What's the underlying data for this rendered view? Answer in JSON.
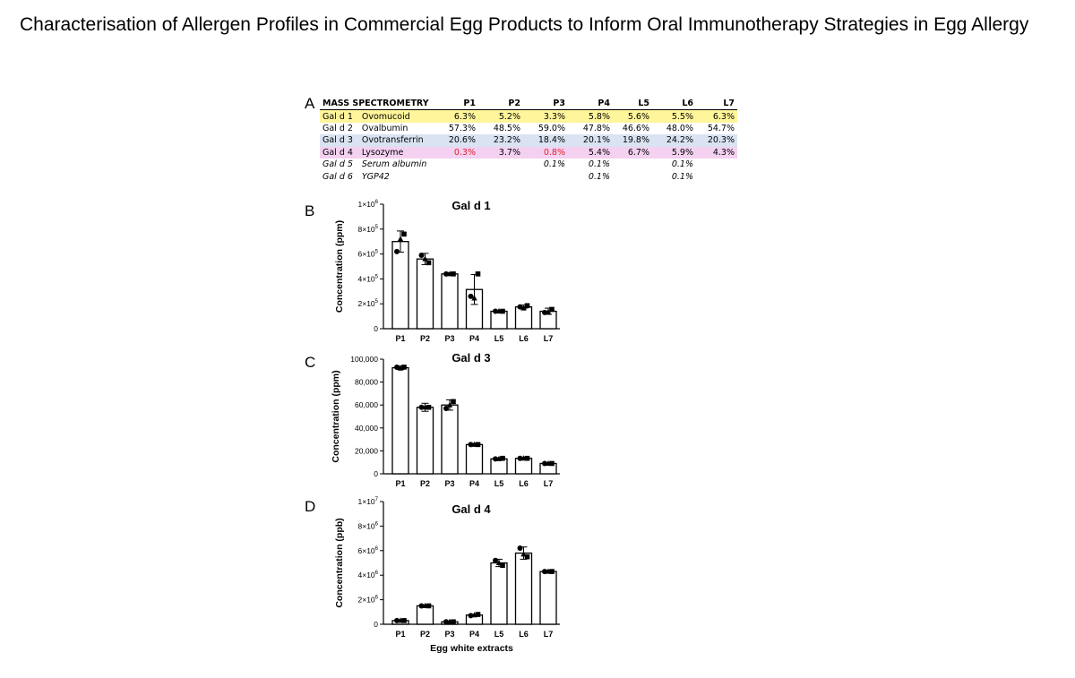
{
  "title": "Characterisation of Allergen Profiles in Commercial Egg Products to Inform Oral Immunotherapy Strategies in Egg Allergy",
  "panel_letters": {
    "a": "A",
    "b": "B",
    "c": "C",
    "d": "D"
  },
  "table": {
    "header": "MASS SPECTROMETRY",
    "columns": [
      "P1",
      "P2",
      "P3",
      "P4",
      "L5",
      "L6",
      "L7"
    ],
    "rows": [
      {
        "code": "Gal d 1",
        "name": "Ovomucoid",
        "bg": "#fff59a",
        "italic": false,
        "values": [
          "6.3%",
          "5.2%",
          "3.3%",
          "5.8%",
          "5.6%",
          "5.5%",
          "6.3%"
        ],
        "red": [
          false,
          false,
          false,
          false,
          false,
          false,
          false
        ]
      },
      {
        "code": "Gal d 2",
        "name": "Ovalbumin",
        "bg": "",
        "italic": false,
        "values": [
          "57.3%",
          "48.5%",
          "59.0%",
          "47.8%",
          "46.6%",
          "48.0%",
          "54.7%"
        ],
        "red": [
          false,
          false,
          false,
          false,
          false,
          false,
          false
        ]
      },
      {
        "code": "Gal d 3",
        "name": "Ovotransferrin",
        "bg": "#d9e3f2",
        "italic": false,
        "values": [
          "20.6%",
          "23.2%",
          "18.4%",
          "20.1%",
          "19.8%",
          "24.2%",
          "20.3%"
        ],
        "red": [
          false,
          false,
          false,
          false,
          false,
          false,
          false
        ]
      },
      {
        "code": "Gal d 4",
        "name": "Lysozyme",
        "bg": "#f4d1f1",
        "italic": false,
        "values": [
          "0.3%",
          "3.7%",
          "0.8%",
          "5.4%",
          "6.7%",
          "5.9%",
          "4.3%"
        ],
        "red": [
          true,
          false,
          true,
          false,
          false,
          false,
          false
        ]
      },
      {
        "code": "Gal d 5",
        "name": "Serum albumin",
        "bg": "",
        "italic": true,
        "values": [
          "",
          "",
          "0.1%",
          "0.1%",
          "",
          "0.1%",
          ""
        ],
        "red": [
          false,
          false,
          false,
          false,
          false,
          false,
          false
        ]
      },
      {
        "code": "Gal d 6",
        "name": "YGP42",
        "bg": "",
        "italic": true,
        "values": [
          "",
          "",
          "",
          "0.1%",
          "",
          "0.1%",
          ""
        ],
        "red": [
          false,
          false,
          false,
          false,
          false,
          false,
          false
        ]
      }
    ],
    "red_color": "#e0202f"
  },
  "chart_data": [
    {
      "type": "bar",
      "title": "Gal d 1",
      "ylabel": "Concentration (ppm)",
      "xlabel": "",
      "categories": [
        "P1",
        "P2",
        "P3",
        "P4",
        "L5",
        "L6",
        "L7"
      ],
      "values": [
        700000,
        560000,
        440000,
        315000,
        140000,
        175000,
        140000
      ],
      "errors": [
        85000,
        45000,
        10000,
        120000,
        8000,
        15000,
        25000
      ],
      "points": [
        [
          620000,
          760000,
          720000
        ],
        [
          590000,
          530000,
          560000
        ],
        [
          440000,
          440000,
          440000
        ],
        [
          260000,
          440000,
          245000
        ],
        [
          140000,
          140000,
          140000
        ],
        [
          175000,
          185000,
          165000
        ],
        [
          130000,
          155000,
          135000
        ]
      ],
      "ylim": [
        0,
        1000000
      ],
      "yticks": [
        0,
        200000,
        400000,
        600000,
        800000,
        1000000
      ],
      "ytick_labels": [
        {
          "base": "0",
          "exp": ""
        },
        {
          "base": "2×10",
          "exp": "5"
        },
        {
          "base": "4×10",
          "exp": "5"
        },
        {
          "base": "6×10",
          "exp": "5"
        },
        {
          "base": "8×10",
          "exp": "5"
        },
        {
          "base": "1×10",
          "exp": "6"
        }
      ]
    },
    {
      "type": "bar",
      "title": "Gal d 3",
      "ylabel": "Concentration (ppm)",
      "xlabel": "",
      "categories": [
        "P1",
        "P2",
        "P3",
        "P4",
        "L5",
        "L6",
        "L7"
      ],
      "values": [
        92500,
        58000,
        60000,
        25500,
        13000,
        13500,
        9000
      ],
      "errors": [
        1500,
        3500,
        4500,
        800,
        800,
        800,
        800
      ],
      "points": [
        [
          93000,
          93000,
          92000
        ],
        [
          58000,
          58000,
          58000
        ],
        [
          57000,
          63000,
          60000
        ],
        [
          25500,
          25500,
          25500
        ],
        [
          13000,
          13500,
          13000
        ],
        [
          13500,
          13500,
          13500
        ],
        [
          9000,
          9000,
          9000
        ]
      ],
      "ylim": [
        0,
        100000
      ],
      "yticks": [
        0,
        20000,
        40000,
        60000,
        80000,
        100000
      ],
      "ytick_labels": [
        {
          "base": "0",
          "exp": ""
        },
        {
          "base": "20,000",
          "exp": ""
        },
        {
          "base": "40,000",
          "exp": ""
        },
        {
          "base": "60,000",
          "exp": ""
        },
        {
          "base": "80,000",
          "exp": ""
        },
        {
          "base": "100,000",
          "exp": ""
        }
      ]
    },
    {
      "type": "bar",
      "title": "Gal d 4",
      "ylabel": "Concentration (ppb)",
      "xlabel": "Egg white extracts",
      "categories": [
        "P1",
        "P2",
        "P3",
        "P4",
        "L5",
        "L6",
        "L7"
      ],
      "values": [
        300000,
        1500000,
        200000,
        750000,
        5000000,
        5800000,
        4300000
      ],
      "errors": [
        50000,
        80000,
        50000,
        50000,
        300000,
        500000,
        100000
      ],
      "points": [
        [
          300000,
          300000,
          300000
        ],
        [
          1500000,
          1500000,
          1500000
        ],
        [
          200000,
          200000,
          200000
        ],
        [
          700000,
          800000,
          750000
        ],
        [
          5200000,
          4800000,
          5000000
        ],
        [
          6200000,
          5500000,
          5700000
        ],
        [
          4300000,
          4300000,
          4300000
        ]
      ],
      "ylim": [
        0,
        10000000
      ],
      "yticks": [
        0,
        2000000,
        4000000,
        6000000,
        8000000,
        10000000
      ],
      "ytick_labels": [
        {
          "base": "0",
          "exp": ""
        },
        {
          "base": "2×10",
          "exp": "6"
        },
        {
          "base": "4×10",
          "exp": "6"
        },
        {
          "base": "6×10",
          "exp": "6"
        },
        {
          "base": "8×10",
          "exp": "6"
        },
        {
          "base": "1×10",
          "exp": "7"
        }
      ]
    }
  ]
}
